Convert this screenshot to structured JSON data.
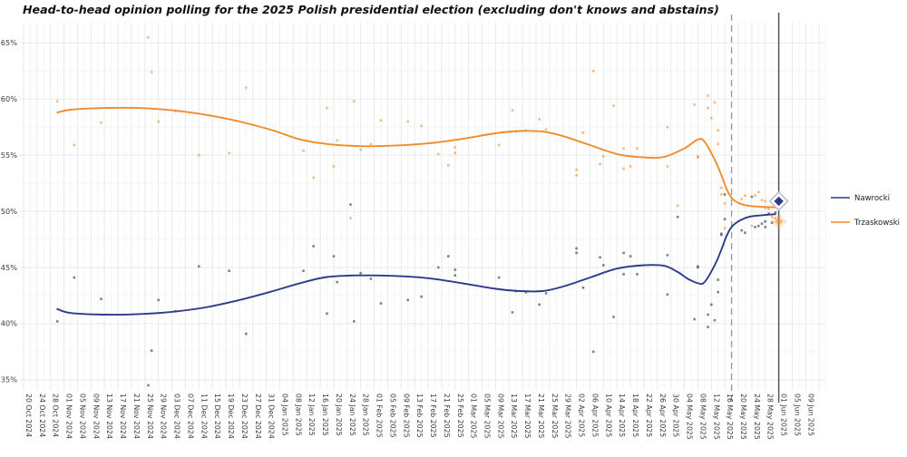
{
  "title": "Head-to-head opinion polling for the 2025 Polish presidential election (excluding don't knows and abstains)",
  "colors": {
    "nawrocki_line": "#2e3a8c",
    "trzaskowski_line": "#f08c2e",
    "nawrocki_point": "#4a4f63",
    "trzaskowski_point": "#f08c2e",
    "grid_major": "#e9e9e9",
    "grid_minor": "#f4f4f4",
    "axis_text": "#3a3a3a",
    "title_text": "#111111",
    "first_round_line": "#9b9b9b",
    "election_day_line": "#555555",
    "background": "#ffffff"
  },
  "legend": {
    "items": [
      {
        "label": "Nawrocki",
        "color": "#2e3a8c"
      },
      {
        "label": "Trzaskowski",
        "color": "#f08c2e"
      }
    ]
  },
  "chart_data": {
    "type": "scatter",
    "title": "Head-to-head opinion polling for the 2025 Polish presidential election (excluding don't knows and abstains)",
    "xlabel": "",
    "ylabel": "",
    "grid": true,
    "legend_position": "right",
    "y_axis": {
      "tick_labels": [
        "35%",
        "40%",
        "45%",
        "50%",
        "55%",
        "60%",
        "65%"
      ],
      "ticks": [
        35,
        40,
        45,
        50,
        55,
        60,
        65
      ],
      "min": 34.1,
      "max": 66.8
    },
    "x_axis": {
      "unit": "days since 20 Oct 2024",
      "tick_interval_days": 4,
      "tick_labels": [
        "20 Oct 2024",
        "24 Oct 2024",
        "28 Oct 2024",
        "01 Nov 2024",
        "05 Nov 2024",
        "09 Nov 2024",
        "13 Nov 2024",
        "17 Nov 2024",
        "21 Nov 2024",
        "25 Nov 2024",
        "29 Nov 2024",
        "03 Dec 2024",
        "07 Dec 2024",
        "11 Dec 2024",
        "15 Dec 2024",
        "19 Dec 2024",
        "23 Dec 2024",
        "27 Dec 2024",
        "31 Dec 2024",
        "04 Jan 2025",
        "08 Jan 2025",
        "12 Jan 2025",
        "16 Jan 2025",
        "20 Jan 2025",
        "24 Jan 2025",
        "28 Jan 2025",
        "01 Feb 2025",
        "05 Feb 2025",
        "09 Feb 2025",
        "13 Feb 2025",
        "17 Feb 2025",
        "21 Feb 2025",
        "25 Feb 2025",
        "01 Mar 2025",
        "05 Mar 2025",
        "09 Mar 2025",
        "13 Mar 2025",
        "17 Mar 2025",
        "21 Mar 2025",
        "25 Mar 2025",
        "29 Mar 2025",
        "02 Apr 2025",
        "06 Apr 2025",
        "10 Apr 2025",
        "14 Apr 2025",
        "18 Apr 2025",
        "22 Apr 2025",
        "26 Apr 2025",
        "30 Apr 2025",
        "04 May 2025",
        "08 May 2025",
        "12 May 2025",
        "16 May 2025",
        "20 May 2025",
        "24 May 2025",
        "28 May 2025",
        "01 Jun 2025",
        "05 Jun 2025",
        "09 Jun 2025"
      ]
    },
    "series": [
      {
        "name": "Nawrocki",
        "color": "#2e3a8c"
      },
      {
        "name": "Trzaskowski",
        "color": "#f08c2e"
      }
    ],
    "polls_columns": [
      "days_since_20_oct_2024",
      "trzaskowski_pct",
      "nawrocki_pct"
    ],
    "polls": [
      [
        10,
        59.8,
        40.2
      ],
      [
        15,
        55.9,
        44.1
      ],
      [
        23,
        57.9,
        42.2
      ],
      [
        37,
        65.5,
        34.5
      ],
      [
        38,
        62.4,
        37.6
      ],
      [
        40,
        58.0,
        42.1
      ],
      [
        45,
        58.9,
        41.1
      ],
      [
        52,
        55.0,
        45.1
      ],
      [
        61,
        55.2,
        44.7
      ],
      [
        66,
        61.0,
        39.1
      ],
      [
        83,
        55.4,
        44.7
      ],
      [
        86,
        53.0,
        46.9
      ],
      [
        90,
        59.2,
        40.9
      ],
      [
        92,
        54.0,
        46.0
      ],
      [
        93,
        56.3,
        43.7
      ],
      [
        97,
        49.4,
        50.6
      ],
      [
        98,
        59.8,
        40.2
      ],
      [
        100,
        55.5,
        44.5
      ],
      [
        103,
        56.0,
        44.0
      ],
      [
        106,
        58.1,
        41.8
      ],
      [
        114,
        58.0,
        42.1
      ],
      [
        118,
        57.6,
        42.4
      ],
      [
        123,
        55.1,
        45.0
      ],
      [
        126,
        54.1,
        46.0
      ],
      [
        128,
        55.7,
        44.3
      ],
      [
        128,
        55.2,
        44.8
      ],
      [
        141,
        55.9,
        44.1
      ],
      [
        145,
        59.0,
        41.0
      ],
      [
        146,
        57.1,
        42.9
      ],
      [
        149,
        57.2,
        42.8
      ],
      [
        153,
        58.2,
        41.7
      ],
      [
        155,
        57.3,
        42.7
      ],
      [
        164,
        53.7,
        46.3
      ],
      [
        164,
        53.2,
        46.7
      ],
      [
        166,
        57.0,
        43.2
      ],
      [
        169,
        62.5,
        37.5
      ],
      [
        171,
        54.2,
        45.9
      ],
      [
        172,
        54.9,
        45.2
      ],
      [
        175,
        59.4,
        40.6
      ],
      [
        178,
        55.6,
        44.4
      ],
      [
        178,
        53.8,
        46.3
      ],
      [
        180,
        54.0,
        46.0
      ],
      [
        182,
        55.6,
        44.4
      ],
      [
        191,
        57.5,
        42.6
      ],
      [
        191,
        54.0,
        46.1
      ],
      [
        194,
        50.5,
        49.5
      ],
      [
        199,
        59.5,
        40.4
      ],
      [
        200,
        54.9,
        45.1
      ],
      [
        200,
        54.8,
        45.0
      ],
      [
        203,
        60.3,
        39.7
      ],
      [
        203,
        59.2,
        40.8
      ],
      [
        204,
        58.3,
        41.7
      ],
      [
        205,
        59.7,
        40.3
      ],
      [
        206,
        57.2,
        42.8
      ],
      [
        206,
        56.0,
        43.9
      ],
      [
        207,
        52.1,
        47.9
      ],
      [
        207,
        51.5,
        48.0
      ],
      [
        208,
        50.7,
        49.3
      ],
      [
        208,
        48.5,
        51.5
      ],
      [
        213,
        51.1,
        48.3
      ],
      [
        214,
        51.4,
        48.1
      ],
      [
        216,
        48.7,
        51.3
      ],
      [
        217,
        51.4,
        48.6
      ],
      [
        218,
        51.7,
        48.7
      ],
      [
        219,
        51.0,
        48.9
      ],
      [
        220,
        50.9,
        49.1
      ],
      [
        220,
        50.3,
        48.6
      ],
      [
        221,
        50.2,
        49.8
      ],
      [
        222,
        49.5,
        49.0
      ],
      [
        223,
        49.4,
        49.9
      ]
    ],
    "trend_trzaskowski": [
      [
        10,
        58.8
      ],
      [
        14,
        59.05
      ],
      [
        24,
        59.2
      ],
      [
        34,
        59.2
      ],
      [
        44,
        59.0
      ],
      [
        54,
        58.6
      ],
      [
        64,
        58.0
      ],
      [
        74,
        57.2
      ],
      [
        82,
        56.4
      ],
      [
        90,
        56.0
      ],
      [
        100,
        55.8
      ],
      [
        110,
        55.85
      ],
      [
        120,
        56.05
      ],
      [
        130,
        56.45
      ],
      [
        140,
        56.95
      ],
      [
        147,
        57.15
      ],
      [
        154,
        57.1
      ],
      [
        160,
        56.7
      ],
      [
        168,
        55.9
      ],
      [
        176,
        55.1
      ],
      [
        184,
        54.8
      ],
      [
        190,
        54.85
      ],
      [
        196,
        55.6
      ],
      [
        200,
        56.4
      ],
      [
        202,
        56.2
      ],
      [
        205,
        54.6
      ],
      [
        207,
        53.2
      ],
      [
        208.5,
        52.0
      ],
      [
        210,
        51.2
      ],
      [
        212,
        50.75
      ],
      [
        215,
        50.5
      ],
      [
        219,
        50.4
      ],
      [
        223,
        50.35
      ]
    ],
    "trend_nawrocki": [
      [
        10,
        41.3
      ],
      [
        14,
        40.95
      ],
      [
        24,
        40.8
      ],
      [
        34,
        40.85
      ],
      [
        44,
        41.05
      ],
      [
        54,
        41.45
      ],
      [
        64,
        42.1
      ],
      [
        74,
        42.9
      ],
      [
        82,
        43.6
      ],
      [
        90,
        44.15
      ],
      [
        100,
        44.3
      ],
      [
        110,
        44.25
      ],
      [
        120,
        44.05
      ],
      [
        130,
        43.6
      ],
      [
        140,
        43.1
      ],
      [
        147,
        42.9
      ],
      [
        154,
        42.9
      ],
      [
        160,
        43.3
      ],
      [
        168,
        44.1
      ],
      [
        176,
        44.9
      ],
      [
        184,
        45.2
      ],
      [
        190,
        45.15
      ],
      [
        194,
        44.6
      ],
      [
        197,
        44.0
      ],
      [
        200,
        43.6
      ],
      [
        202,
        43.7
      ],
      [
        205,
        45.2
      ],
      [
        207,
        46.6
      ],
      [
        208.5,
        47.8
      ],
      [
        210,
        48.6
      ],
      [
        212,
        49.1
      ],
      [
        215,
        49.5
      ],
      [
        219,
        49.65
      ],
      [
        223,
        49.75
      ]
    ],
    "event_lines": [
      {
        "day": 210,
        "date": "18 May 2025",
        "style": "dashed"
      },
      {
        "day": 224,
        "date": "01 Jun 2025",
        "style": "solid"
      }
    ],
    "results": [
      {
        "name": "Nawrocki",
        "day": 224,
        "pct": 50.9
      },
      {
        "name": "Trzaskowski",
        "day": 224,
        "pct": 49.1
      }
    ]
  }
}
